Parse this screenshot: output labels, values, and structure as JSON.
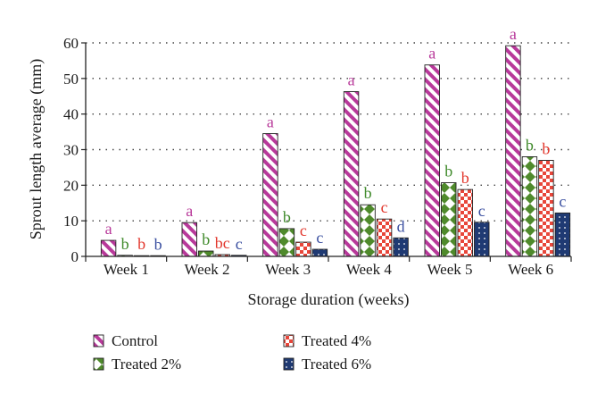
{
  "chart_data": {
    "type": "bar",
    "xlabel": "Storage duration (weeks)",
    "ylabel": "Sprout length average (mm)",
    "ylim": [
      0,
      60
    ],
    "yticks": [
      0,
      10,
      20,
      30,
      40,
      50,
      60
    ],
    "grid": "horizontal dotted",
    "legend_position": "bottom",
    "categories": [
      "Week 1",
      "Week 2",
      "Week 3",
      "Week 4",
      "Week 5",
      "Week 6"
    ],
    "series": [
      {
        "name": "Control",
        "pattern": "diagonal-stripes",
        "color": "#b8399a",
        "label_color": "#b8399a",
        "values": [
          4.5,
          9.5,
          34.5,
          46.3,
          53.8,
          59.2
        ],
        "letters": [
          "a",
          "a",
          "a",
          "a",
          "a",
          "a"
        ]
      },
      {
        "name": "Treated 2%",
        "pattern": "diamonds",
        "color": "#4f8a2c",
        "label_color": "#3f8a2a",
        "values": [
          0.3,
          1.5,
          7.8,
          14.5,
          20.7,
          28.0
        ],
        "letters": [
          "b",
          "b",
          "b",
          "b",
          "b",
          "b"
        ]
      },
      {
        "name": "Treated 4%",
        "pattern": "checker",
        "color": "#e8463a",
        "label_color": "#e2372d",
        "values": [
          0.2,
          0.5,
          4.0,
          10.5,
          18.8,
          27.0
        ],
        "letters": [
          "b",
          "bc",
          "c",
          "c",
          "b",
          "b"
        ]
      },
      {
        "name": "Treated 6%",
        "pattern": "dots",
        "color": "#1f3a73",
        "label_color": "#3a4fa0",
        "values": [
          0.1,
          0.3,
          2.0,
          5.2,
          9.6,
          12.2
        ],
        "letters": [
          "b",
          "c",
          "c",
          "d",
          "c",
          "c"
        ]
      }
    ]
  }
}
